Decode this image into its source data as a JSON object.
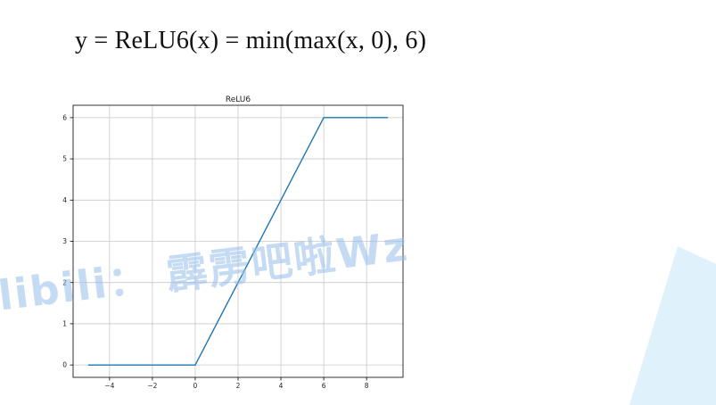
{
  "slide": {
    "formula": "y = ReLU6(x) = min(max(x, 0), 6)",
    "watermark": "libili： 霹雳吧啦Wz",
    "accent_color": "#dff1fb"
  },
  "chart_data": {
    "type": "line",
    "title": "ReLU6",
    "xlabel": "",
    "ylabel": "",
    "xlim": [
      -5.7,
      9.7
    ],
    "ylim": [
      -0.3,
      6.3
    ],
    "xticks": [
      -4,
      -2,
      0,
      2,
      4,
      6,
      8
    ],
    "xtick_labels": [
      "−4",
      "−2",
      "0",
      "2",
      "4",
      "6",
      "8"
    ],
    "yticks": [
      0,
      1,
      2,
      3,
      4,
      5,
      6
    ],
    "ytick_labels": [
      "0",
      "1",
      "2",
      "3",
      "4",
      "5",
      "6"
    ],
    "grid": true,
    "series": [
      {
        "color": "#1f77b4",
        "x": [
          -5,
          0,
          6,
          9
        ],
        "y": [
          0,
          0,
          6,
          6
        ]
      }
    ]
  }
}
